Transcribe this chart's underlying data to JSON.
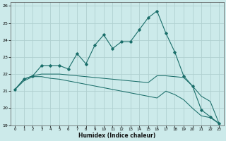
{
  "xlabel": "Humidex (Indice chaleur)",
  "background_color": "#cceaea",
  "grid_color": "#b0d0d0",
  "line_color": "#1a6e6a",
  "xlim": [
    -0.5,
    23.5
  ],
  "ylim": [
    19,
    26.2
  ],
  "yticks": [
    19,
    20,
    21,
    22,
    23,
    24,
    25,
    26
  ],
  "xticks": [
    0,
    1,
    2,
    3,
    4,
    5,
    6,
    7,
    8,
    9,
    10,
    11,
    12,
    13,
    14,
    15,
    16,
    17,
    18,
    19,
    20,
    21,
    22,
    23
  ],
  "line1_x": [
    0,
    1,
    2,
    3,
    4,
    5,
    6,
    7,
    8,
    9,
    10,
    11,
    12,
    13,
    14,
    15,
    16,
    17,
    18,
    19,
    20,
    21,
    22,
    23
  ],
  "line1_y": [
    21.1,
    21.7,
    21.9,
    22.5,
    22.5,
    22.5,
    22.3,
    23.2,
    22.6,
    23.7,
    24.3,
    23.5,
    23.9,
    23.9,
    24.6,
    25.3,
    25.7,
    24.4,
    23.3,
    21.9,
    21.3,
    19.9,
    19.5,
    19.1
  ],
  "line2_x": [
    0,
    1,
    2,
    3,
    4,
    5,
    6,
    7,
    8,
    9,
    10,
    11,
    12,
    13,
    14,
    15,
    16,
    17,
    18,
    19,
    20,
    21,
    22,
    23
  ],
  "line2_y": [
    21.1,
    21.7,
    21.9,
    22.0,
    22.0,
    22.0,
    21.95,
    21.9,
    21.85,
    21.8,
    21.75,
    21.7,
    21.65,
    21.6,
    21.55,
    21.5,
    21.9,
    21.9,
    21.85,
    21.8,
    21.3,
    20.7,
    20.4,
    19.1
  ],
  "line3_x": [
    0,
    1,
    2,
    3,
    4,
    5,
    6,
    7,
    8,
    9,
    10,
    11,
    12,
    13,
    14,
    15,
    16,
    17,
    18,
    19,
    20,
    21,
    22,
    23
  ],
  "line3_y": [
    21.1,
    21.6,
    21.85,
    21.85,
    21.75,
    21.7,
    21.6,
    21.5,
    21.4,
    21.3,
    21.2,
    21.1,
    21.0,
    20.9,
    20.8,
    20.7,
    20.6,
    21.0,
    20.8,
    20.5,
    20.0,
    19.55,
    19.45,
    19.1
  ]
}
